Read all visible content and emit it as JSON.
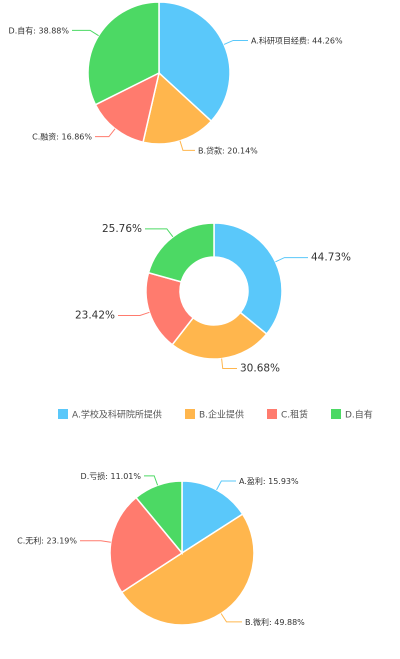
{
  "chart_data": [
    {
      "type": "pie",
      "categories": [
        "A.科研项目经费",
        "B.贷款",
        "C.融资",
        "D.自有"
      ],
      "values": [
        44.26,
        20.14,
        16.86,
        38.88
      ],
      "labels": [
        "A.科研项目经费: 44.26%",
        "B.贷款: 20.14%",
        "C.融资: 16.86%",
        "D.自有: 38.88%"
      ],
      "colors": [
        "#5AC8FA",
        "#FFB64D",
        "#FF7B6E",
        "#4CD964"
      ]
    },
    {
      "type": "pie",
      "donut": true,
      "categories": [
        "A.学校及科研院所提供",
        "B.企业提供",
        "C.租赁",
        "D.自有"
      ],
      "values": [
        44.73,
        30.68,
        23.42,
        25.76
      ],
      "labels": [
        "44.73%",
        "30.68%",
        "23.42%",
        "25.76%"
      ],
      "colors": [
        "#5AC8FA",
        "#FFB64D",
        "#FF7B6E",
        "#4CD964"
      ],
      "legend": {
        "position": "bottom",
        "items": [
          "A.学校及科研院所提供",
          "B.企业提供",
          "C.租赁",
          "D.自有"
        ]
      }
    },
    {
      "type": "pie",
      "categories": [
        "A.盈利",
        "B.微利",
        "C.无利",
        "D.亏损"
      ],
      "values": [
        15.93,
        49.88,
        23.19,
        11.01
      ],
      "labels": [
        "A.盈利: 15.93%",
        "B.微利: 49.88%",
        "C.无利: 23.19%",
        "D.亏损: 11.01%"
      ],
      "colors": [
        "#5AC8FA",
        "#FFB64D",
        "#FF7B6E",
        "#4CD964"
      ]
    }
  ]
}
